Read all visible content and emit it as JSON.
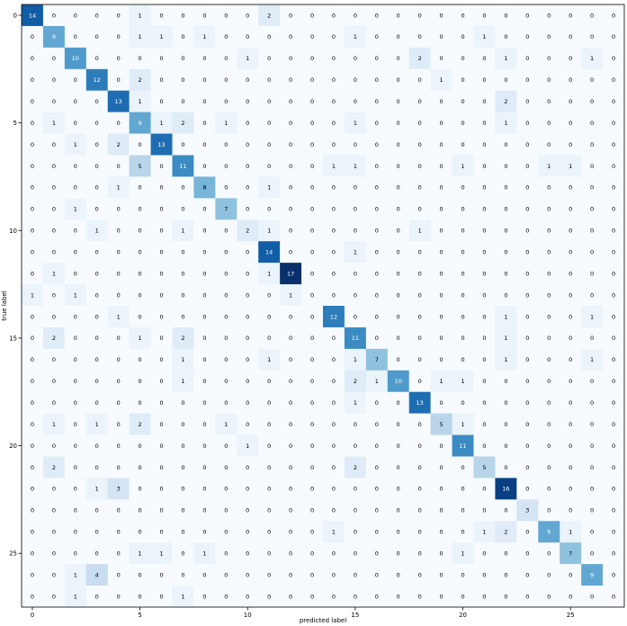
{
  "chart_data": {
    "type": "heatmap",
    "xlabel": "predicted label",
    "ylabel": "true label",
    "x_ticks": [
      0,
      5,
      10,
      15,
      20,
      25
    ],
    "y_ticks": [
      0,
      5,
      10,
      15,
      20,
      25
    ],
    "colormap": "Blues",
    "vmin": 0,
    "vmax": 17,
    "matrix": [
      [
        14,
        0,
        0,
        0,
        0,
        1,
        0,
        0,
        0,
        0,
        0,
        2,
        0,
        0,
        0,
        0,
        0,
        0,
        0,
        0,
        0,
        0,
        0,
        0,
        0,
        0,
        0,
        0
      ],
      [
        0,
        9,
        0,
        0,
        0,
        1,
        1,
        0,
        1,
        0,
        0,
        0,
        0,
        0,
        0,
        1,
        0,
        0,
        0,
        0,
        0,
        1,
        0,
        0,
        0,
        0,
        0,
        0
      ],
      [
        0,
        0,
        10,
        0,
        0,
        0,
        0,
        0,
        0,
        0,
        1,
        0,
        0,
        0,
        0,
        0,
        0,
        0,
        2,
        0,
        0,
        0,
        1,
        0,
        0,
        0,
        1,
        0
      ],
      [
        0,
        0,
        0,
        12,
        0,
        2,
        0,
        0,
        0,
        0,
        0,
        0,
        0,
        0,
        0,
        0,
        0,
        0,
        0,
        1,
        0,
        0,
        0,
        0,
        0,
        0,
        0,
        0
      ],
      [
        0,
        0,
        0,
        0,
        13,
        1,
        0,
        0,
        0,
        0,
        0,
        0,
        0,
        0,
        0,
        0,
        0,
        0,
        0,
        0,
        0,
        0,
        2,
        0,
        0,
        0,
        0,
        0
      ],
      [
        0,
        1,
        0,
        0,
        0,
        9,
        1,
        2,
        0,
        1,
        0,
        0,
        0,
        0,
        0,
        1,
        0,
        0,
        0,
        0,
        0,
        0,
        1,
        0,
        0,
        0,
        0,
        0
      ],
      [
        0,
        0,
        1,
        0,
        2,
        0,
        13,
        0,
        0,
        0,
        0,
        0,
        0,
        0,
        0,
        0,
        0,
        0,
        0,
        0,
        0,
        0,
        0,
        0,
        0,
        0,
        0,
        0
      ],
      [
        0,
        0,
        0,
        0,
        0,
        5,
        0,
        11,
        0,
        0,
        0,
        0,
        0,
        0,
        1,
        1,
        0,
        0,
        0,
        0,
        1,
        0,
        0,
        0,
        1,
        1,
        0,
        0
      ],
      [
        0,
        0,
        0,
        0,
        1,
        0,
        0,
        0,
        8,
        0,
        0,
        1,
        0,
        0,
        0,
        0,
        0,
        0,
        0,
        0,
        0,
        0,
        0,
        0,
        0,
        0,
        0,
        0
      ],
      [
        0,
        0,
        1,
        0,
        0,
        0,
        0,
        0,
        0,
        7,
        0,
        0,
        0,
        0,
        0,
        0,
        0,
        0,
        0,
        0,
        0,
        0,
        0,
        0,
        0,
        0,
        0,
        0
      ],
      [
        0,
        0,
        0,
        1,
        0,
        0,
        0,
        1,
        0,
        0,
        2,
        1,
        0,
        0,
        0,
        0,
        0,
        0,
        1,
        0,
        0,
        0,
        0,
        0,
        0,
        0,
        0,
        0
      ],
      [
        0,
        0,
        0,
        0,
        0,
        0,
        0,
        0,
        0,
        0,
        0,
        14,
        0,
        0,
        0,
        1,
        0,
        0,
        0,
        0,
        0,
        0,
        0,
        0,
        0,
        0,
        0,
        0
      ],
      [
        0,
        1,
        0,
        0,
        0,
        0,
        0,
        0,
        0,
        0,
        0,
        1,
        17,
        0,
        0,
        0,
        0,
        0,
        0,
        0,
        0,
        0,
        0,
        0,
        0,
        0,
        0,
        0
      ],
      [
        1,
        0,
        1,
        0,
        0,
        0,
        0,
        0,
        0,
        0,
        0,
        0,
        1,
        0,
        0,
        0,
        0,
        0,
        0,
        0,
        0,
        0,
        0,
        0,
        0,
        0,
        0,
        0
      ],
      [
        0,
        0,
        0,
        0,
        1,
        0,
        0,
        0,
        0,
        0,
        0,
        0,
        0,
        0,
        12,
        0,
        0,
        0,
        0,
        0,
        0,
        0,
        1,
        0,
        0,
        0,
        1,
        0
      ],
      [
        0,
        2,
        0,
        0,
        0,
        1,
        0,
        2,
        0,
        0,
        0,
        0,
        0,
        0,
        0,
        11,
        0,
        0,
        0,
        0,
        0,
        0,
        1,
        0,
        0,
        0,
        0,
        0
      ],
      [
        0,
        0,
        0,
        0,
        0,
        0,
        0,
        1,
        0,
        0,
        0,
        1,
        0,
        0,
        0,
        1,
        7,
        0,
        0,
        0,
        0,
        0,
        1,
        0,
        0,
        0,
        1,
        0
      ],
      [
        0,
        0,
        0,
        0,
        0,
        0,
        0,
        1,
        0,
        0,
        0,
        0,
        0,
        0,
        0,
        2,
        1,
        10,
        0,
        1,
        1,
        0,
        0,
        0,
        0,
        0,
        0,
        0
      ],
      [
        0,
        0,
        0,
        0,
        0,
        0,
        0,
        0,
        0,
        0,
        0,
        0,
        0,
        0,
        0,
        1,
        0,
        0,
        13,
        0,
        0,
        0,
        0,
        0,
        0,
        0,
        0,
        0
      ],
      [
        0,
        1,
        0,
        1,
        0,
        2,
        0,
        0,
        0,
        1,
        0,
        0,
        0,
        0,
        0,
        0,
        0,
        0,
        0,
        5,
        1,
        0,
        0,
        0,
        0,
        0,
        0,
        0
      ],
      [
        0,
        0,
        0,
        0,
        0,
        0,
        0,
        0,
        0,
        0,
        1,
        0,
        0,
        0,
        0,
        0,
        0,
        0,
        0,
        0,
        11,
        0,
        0,
        0,
        0,
        0,
        0,
        0
      ],
      [
        0,
        2,
        0,
        0,
        0,
        0,
        0,
        0,
        0,
        0,
        0,
        0,
        0,
        0,
        0,
        2,
        0,
        0,
        0,
        0,
        0,
        5,
        0,
        0,
        0,
        0,
        0,
        0
      ],
      [
        0,
        0,
        0,
        1,
        3,
        0,
        0,
        0,
        0,
        0,
        0,
        0,
        0,
        0,
        0,
        0,
        0,
        0,
        0,
        0,
        0,
        0,
        16,
        0,
        0,
        0,
        0,
        0
      ],
      [
        0,
        0,
        0,
        0,
        0,
        0,
        0,
        0,
        0,
        0,
        0,
        0,
        0,
        0,
        0,
        0,
        0,
        0,
        0,
        0,
        0,
        0,
        0,
        3,
        0,
        0,
        0,
        0
      ],
      [
        0,
        0,
        0,
        0,
        0,
        0,
        0,
        0,
        0,
        0,
        0,
        0,
        0,
        0,
        1,
        0,
        0,
        0,
        0,
        0,
        0,
        1,
        2,
        0,
        9,
        1,
        0,
        0
      ],
      [
        0,
        0,
        0,
        0,
        0,
        1,
        1,
        0,
        1,
        0,
        0,
        0,
        0,
        0,
        0,
        0,
        0,
        0,
        0,
        0,
        1,
        0,
        0,
        0,
        0,
        7,
        0,
        0
      ],
      [
        0,
        0,
        1,
        4,
        0,
        0,
        0,
        0,
        0,
        0,
        0,
        0,
        0,
        0,
        0,
        0,
        0,
        0,
        0,
        0,
        0,
        0,
        0,
        0,
        0,
        0,
        9,
        0
      ],
      [
        0,
        0,
        1,
        0,
        0,
        0,
        0,
        1,
        0,
        0,
        0,
        0,
        0,
        0,
        0,
        0,
        0,
        0,
        0,
        0,
        0,
        0,
        0,
        0,
        0,
        0,
        0,
        0
      ]
    ]
  }
}
